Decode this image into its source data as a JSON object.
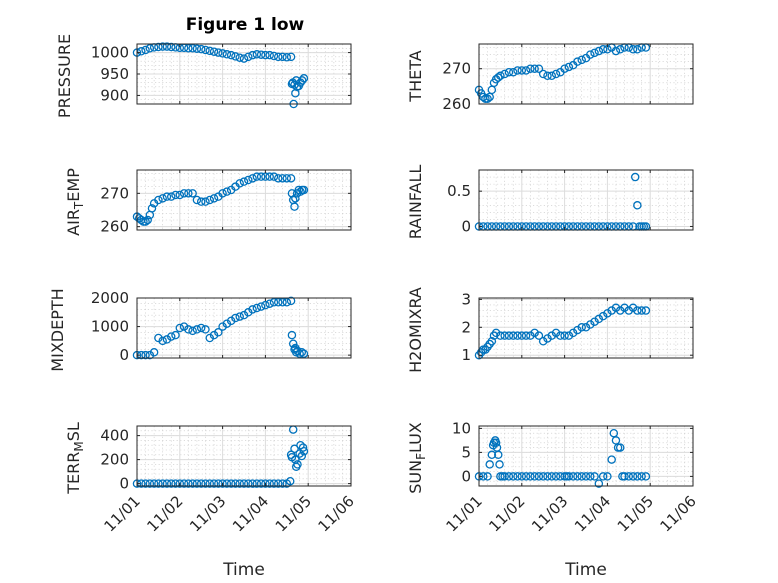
{
  "title": "Figure 1 low",
  "colors": {
    "marker": "#0072BD",
    "axis": "#262626",
    "grid": "#dcdcdc"
  },
  "x_tick_labels": [
    "11/01",
    "11/02",
    "11/03",
    "11/04",
    "11/05",
    "11/06"
  ],
  "x_label": "Time",
  "chart_data": [
    {
      "type": "scatter",
      "id": "pressure",
      "ylabel": "PRESSURE",
      "xlim": [
        0,
        5
      ],
      "ylim": [
        880,
        1020
      ],
      "yticks": [
        900,
        950,
        1000
      ],
      "grid": true,
      "series": [
        {
          "x": [
            0.0,
            0.1,
            0.2,
            0.3,
            0.4,
            0.5,
            0.6,
            0.7,
            0.8,
            0.9,
            1.0,
            1.1,
            1.2,
            1.3,
            1.4,
            1.5,
            1.6,
            1.7,
            1.8,
            1.9,
            2.0,
            2.1,
            2.2,
            2.3,
            2.4,
            2.5,
            2.6,
            2.7,
            2.8,
            2.9,
            3.0,
            3.1,
            3.2,
            3.3,
            3.4,
            3.5,
            3.6,
            3.62,
            3.64,
            3.66,
            3.68,
            3.7,
            3.72,
            3.74,
            3.78,
            3.82,
            3.86,
            3.9
          ],
          "y": [
            1000,
            1003,
            1006,
            1010,
            1012,
            1013,
            1014,
            1014,
            1013,
            1012,
            1011,
            1011,
            1010,
            1010,
            1009,
            1008,
            1006,
            1004,
            1002,
            1000,
            998,
            996,
            994,
            991,
            988,
            986,
            990,
            994,
            996,
            995,
            994,
            994,
            992,
            990,
            990,
            989,
            990,
            927,
            930,
            880,
            925,
            905,
            935,
            920,
            922,
            930,
            935,
            940
          ]
        }
      ]
    },
    {
      "type": "scatter",
      "id": "theta",
      "ylabel": "THETA",
      "xlim": [
        0,
        5
      ],
      "ylim": [
        260,
        277
      ],
      "yticks": [
        260,
        270
      ],
      "grid": true,
      "series": [
        {
          "x": [
            0.0,
            0.05,
            0.1,
            0.15,
            0.2,
            0.25,
            0.3,
            0.35,
            0.4,
            0.45,
            0.5,
            0.6,
            0.7,
            0.8,
            0.9,
            1.0,
            1.1,
            1.2,
            1.3,
            1.4,
            1.5,
            1.6,
            1.7,
            1.8,
            1.9,
            2.0,
            2.1,
            2.2,
            2.3,
            2.4,
            2.5,
            2.6,
            2.7,
            2.8,
            2.9,
            3.0,
            3.1,
            3.2,
            3.3,
            3.4,
            3.5,
            3.6,
            3.7,
            3.8,
            3.9
          ],
          "y": [
            264,
            263,
            262,
            261.5,
            261.5,
            262,
            264,
            266,
            267,
            267.5,
            268,
            268.5,
            269,
            269,
            269.5,
            269.5,
            269.5,
            270,
            270,
            270,
            268.5,
            268,
            268,
            268.5,
            269,
            270,
            270.5,
            271,
            272,
            272.5,
            273,
            274,
            274.5,
            275,
            275.5,
            275.5,
            276,
            275,
            275.5,
            276,
            276,
            275.5,
            275.5,
            276,
            276
          ]
        }
      ]
    },
    {
      "type": "scatter",
      "id": "air-temp",
      "ylabel": "AIR_TEMP",
      "xlim": [
        0,
        5
      ],
      "ylim": [
        259,
        277
      ],
      "yticks": [
        260,
        270
      ],
      "grid": true,
      "series": [
        {
          "x": [
            0.0,
            0.05,
            0.1,
            0.15,
            0.2,
            0.25,
            0.3,
            0.35,
            0.4,
            0.5,
            0.6,
            0.7,
            0.8,
            0.9,
            1.0,
            1.1,
            1.2,
            1.3,
            1.4,
            1.5,
            1.6,
            1.7,
            1.8,
            1.9,
            2.0,
            2.1,
            2.2,
            2.3,
            2.4,
            2.5,
            2.6,
            2.7,
            2.8,
            2.9,
            3.0,
            3.1,
            3.2,
            3.3,
            3.4,
            3.5,
            3.6,
            3.62,
            3.65,
            3.68,
            3.7,
            3.74,
            3.78,
            3.82,
            3.86,
            3.9
          ],
          "y": [
            263,
            262.5,
            262,
            261.5,
            261.5,
            262,
            263.5,
            265.5,
            267,
            268,
            268.5,
            269,
            269,
            269.5,
            269.5,
            270,
            270,
            270,
            268,
            267.5,
            267.5,
            268,
            268.5,
            269,
            270,
            270.5,
            271,
            272,
            273,
            273.5,
            274,
            274.5,
            275,
            275,
            275,
            275,
            275,
            274.5,
            274.5,
            274.5,
            274.5,
            270,
            268,
            266,
            268.5,
            270,
            271,
            270.5,
            271,
            271
          ]
        }
      ]
    },
    {
      "type": "scatter",
      "id": "rainfall",
      "ylabel": "RAINFALL",
      "xlim": [
        0,
        5
      ],
      "ylim": [
        -0.05,
        0.8
      ],
      "yticks": [
        0,
        0.5
      ],
      "grid": true,
      "series": [
        {
          "x": [
            0.0,
            0.1,
            0.2,
            0.3,
            0.4,
            0.5,
            0.6,
            0.7,
            0.8,
            0.9,
            1.0,
            1.1,
            1.2,
            1.3,
            1.4,
            1.5,
            1.6,
            1.7,
            1.8,
            1.9,
            2.0,
            2.1,
            2.2,
            2.3,
            2.4,
            2.5,
            2.6,
            2.7,
            2.8,
            2.9,
            3.0,
            3.1,
            3.2,
            3.3,
            3.4,
            3.5,
            3.6,
            3.65,
            3.7,
            3.75,
            3.8,
            3.85,
            3.9
          ],
          "y": [
            0,
            0,
            0,
            0,
            0,
            0,
            0,
            0,
            0,
            0,
            0,
            0,
            0,
            0,
            0,
            0,
            0,
            0,
            0,
            0,
            0,
            0,
            0,
            0,
            0,
            0,
            0,
            0,
            0,
            0,
            0,
            0,
            0,
            0,
            0,
            0,
            0,
            0.7,
            0.3,
            0,
            0,
            0,
            0
          ]
        }
      ]
    },
    {
      "type": "scatter",
      "id": "mixdepth",
      "ylabel": "MIXDEPTH",
      "xlim": [
        0,
        5
      ],
      "ylim": [
        -100,
        2000
      ],
      "yticks": [
        0,
        1000,
        2000
      ],
      "grid": true,
      "series": [
        {
          "x": [
            0.0,
            0.1,
            0.2,
            0.3,
            0.4,
            0.5,
            0.6,
            0.7,
            0.8,
            0.9,
            1.0,
            1.1,
            1.2,
            1.3,
            1.4,
            1.5,
            1.6,
            1.7,
            1.8,
            1.9,
            2.0,
            2.1,
            2.2,
            2.3,
            2.4,
            2.5,
            2.6,
            2.7,
            2.8,
            2.9,
            3.0,
            3.1,
            3.2,
            3.3,
            3.4,
            3.5,
            3.6,
            3.62,
            3.65,
            3.68,
            3.7,
            3.72,
            3.75,
            3.8,
            3.85,
            3.9
          ],
          "y": [
            0,
            0,
            0,
            0,
            100,
            600,
            500,
            550,
            650,
            700,
            950,
            1000,
            900,
            850,
            900,
            950,
            900,
            600,
            700,
            800,
            1000,
            1100,
            1200,
            1300,
            1350,
            1400,
            1500,
            1600,
            1650,
            1700,
            1750,
            1800,
            1850,
            1850,
            1850,
            1850,
            1900,
            700,
            400,
            200,
            250,
            100,
            150,
            50,
            100,
            50
          ]
        }
      ]
    },
    {
      "type": "scatter",
      "id": "h2omixra",
      "ylabel": "H2OMIXRA",
      "xlim": [
        0,
        5
      ],
      "ylim": [
        0.9,
        3.05
      ],
      "yticks": [
        1,
        2,
        3
      ],
      "grid": true,
      "series": [
        {
          "x": [
            0.0,
            0.05,
            0.1,
            0.15,
            0.2,
            0.25,
            0.3,
            0.35,
            0.4,
            0.5,
            0.6,
            0.7,
            0.8,
            0.9,
            1.0,
            1.1,
            1.2,
            1.3,
            1.4,
            1.5,
            1.6,
            1.7,
            1.8,
            1.9,
            2.0,
            2.1,
            2.2,
            2.3,
            2.4,
            2.5,
            2.6,
            2.7,
            2.8,
            2.9,
            3.0,
            3.1,
            3.2,
            3.3,
            3.4,
            3.5,
            3.6,
            3.7,
            3.8,
            3.9
          ],
          "y": [
            1.0,
            1.1,
            1.2,
            1.2,
            1.3,
            1.4,
            1.5,
            1.7,
            1.8,
            1.7,
            1.7,
            1.7,
            1.7,
            1.7,
            1.7,
            1.7,
            1.7,
            1.8,
            1.7,
            1.5,
            1.6,
            1.7,
            1.8,
            1.7,
            1.7,
            1.7,
            1.8,
            1.9,
            2.0,
            2.0,
            2.1,
            2.2,
            2.3,
            2.4,
            2.5,
            2.6,
            2.7,
            2.6,
            2.7,
            2.6,
            2.7,
            2.6,
            2.6,
            2.6
          ]
        }
      ]
    },
    {
      "type": "scatter",
      "id": "terr-msl",
      "ylabel": "TERR_MSL",
      "xlim": [
        0,
        5
      ],
      "ylim": [
        -20,
        480
      ],
      "yticks": [
        0,
        200,
        400
      ],
      "grid": true,
      "series": [
        {
          "x": [
            0.0,
            0.1,
            0.2,
            0.3,
            0.4,
            0.5,
            0.6,
            0.7,
            0.8,
            0.9,
            1.0,
            1.1,
            1.2,
            1.3,
            1.4,
            1.5,
            1.6,
            1.7,
            1.8,
            1.9,
            2.0,
            2.1,
            2.2,
            2.3,
            2.4,
            2.5,
            2.6,
            2.7,
            2.8,
            2.9,
            3.0,
            3.1,
            3.2,
            3.3,
            3.4,
            3.5,
            3.58,
            3.6,
            3.62,
            3.65,
            3.68,
            3.7,
            3.72,
            3.75,
            3.8,
            3.82,
            3.85,
            3.88,
            3.9
          ],
          "y": [
            0,
            0,
            0,
            0,
            0,
            0,
            0,
            0,
            0,
            0,
            0,
            0,
            0,
            0,
            0,
            0,
            0,
            0,
            0,
            0,
            0,
            0,
            0,
            0,
            0,
            0,
            0,
            0,
            0,
            0,
            0,
            0,
            0,
            0,
            0,
            0,
            20,
            240,
            220,
            450,
            290,
            200,
            140,
            160,
            250,
            320,
            230,
            300,
            270
          ]
        }
      ]
    },
    {
      "type": "scatter",
      "id": "sun-flux",
      "ylabel": "SUN_FLUX",
      "xlim": [
        0,
        5
      ],
      "ylim": [
        -2,
        10.5
      ],
      "yticks": [
        0,
        5,
        10
      ],
      "grid": true,
      "series": [
        {
          "x": [
            0.0,
            0.1,
            0.2,
            0.25,
            0.3,
            0.33,
            0.35,
            0.38,
            0.4,
            0.42,
            0.45,
            0.48,
            0.5,
            0.55,
            0.6,
            0.7,
            0.8,
            0.9,
            1.0,
            1.1,
            1.2,
            1.3,
            1.4,
            1.5,
            1.6,
            1.7,
            1.8,
            1.9,
            2.0,
            2.05,
            2.1,
            2.2,
            2.3,
            2.4,
            2.5,
            2.6,
            2.7,
            2.8,
            2.9,
            3.0,
            3.1,
            3.15,
            3.2,
            3.25,
            3.3,
            3.35,
            3.4,
            3.5,
            3.6,
            3.7,
            3.8,
            3.9
          ],
          "y": [
            0,
            0,
            0,
            2.5,
            4.5,
            6.5,
            7.0,
            7.5,
            7.0,
            6.0,
            4.5,
            2.5,
            0,
            0,
            0,
            0,
            0,
            0,
            0,
            0,
            0,
            0,
            0,
            0,
            0,
            0,
            0,
            0,
            0,
            0,
            0,
            0,
            0,
            0,
            0,
            0,
            0,
            -1.5,
            0,
            0,
            3.5,
            9.0,
            7.5,
            6.0,
            6.0,
            0,
            0,
            0,
            0,
            0,
            0,
            0
          ]
        }
      ]
    }
  ]
}
